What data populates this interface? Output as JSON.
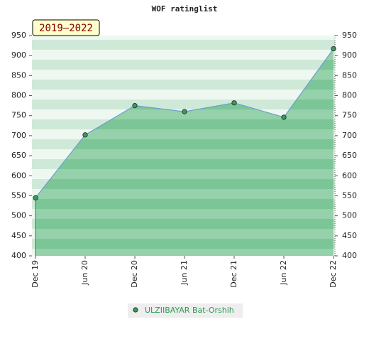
{
  "chart_data": {
    "type": "area",
    "title": "WOF ratinglist",
    "annotation": "2019–2022",
    "categories": [
      "Dec 19",
      "Jun 20",
      "Dec 20",
      "Jun 21",
      "Dec 21",
      "Jun 22",
      "Dec 22"
    ],
    "series": [
      {
        "name": "ULZIIBAYAR Bat-Orshih",
        "color": "#6a9fd0",
        "values": [
          545,
          702,
          775,
          760,
          782,
          746,
          917
        ]
      }
    ],
    "ylim": [
      400,
      950
    ],
    "yticks": [
      400,
      450,
      500,
      550,
      600,
      650,
      700,
      750,
      800,
      850,
      900,
      950
    ],
    "grid": true
  }
}
